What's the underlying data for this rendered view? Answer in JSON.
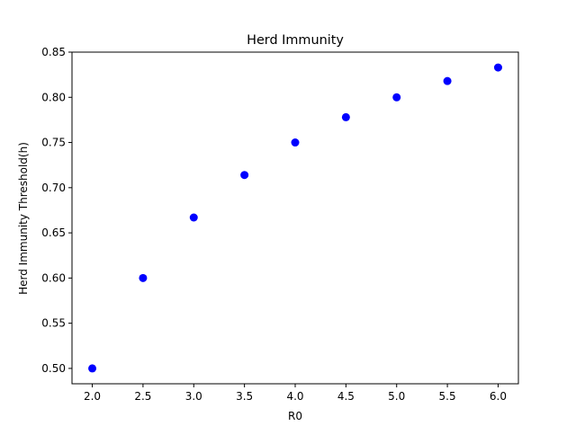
{
  "chart_data": {
    "type": "scatter",
    "title": "Herd Immunity",
    "xlabel": "R0",
    "ylabel": "Herd Immunity Threshold(h)",
    "x": [
      2.0,
      2.5,
      3.0,
      3.5,
      4.0,
      4.5,
      5.0,
      5.5,
      6.0
    ],
    "y": [
      0.5,
      0.6,
      0.667,
      0.714,
      0.75,
      0.778,
      0.8,
      0.818,
      0.833
    ],
    "xlim": [
      1.8,
      6.2
    ],
    "ylim": [
      0.483,
      0.85
    ],
    "xticks": [
      "2.0",
      "2.5",
      "3.0",
      "3.5",
      "4.0",
      "4.5",
      "5.0",
      "5.5",
      "6.0"
    ],
    "yticks": [
      "0.50",
      "0.55",
      "0.60",
      "0.65",
      "0.70",
      "0.75",
      "0.80",
      "0.85"
    ],
    "marker_color": "#0000ff",
    "grid": false,
    "legend": false
  }
}
